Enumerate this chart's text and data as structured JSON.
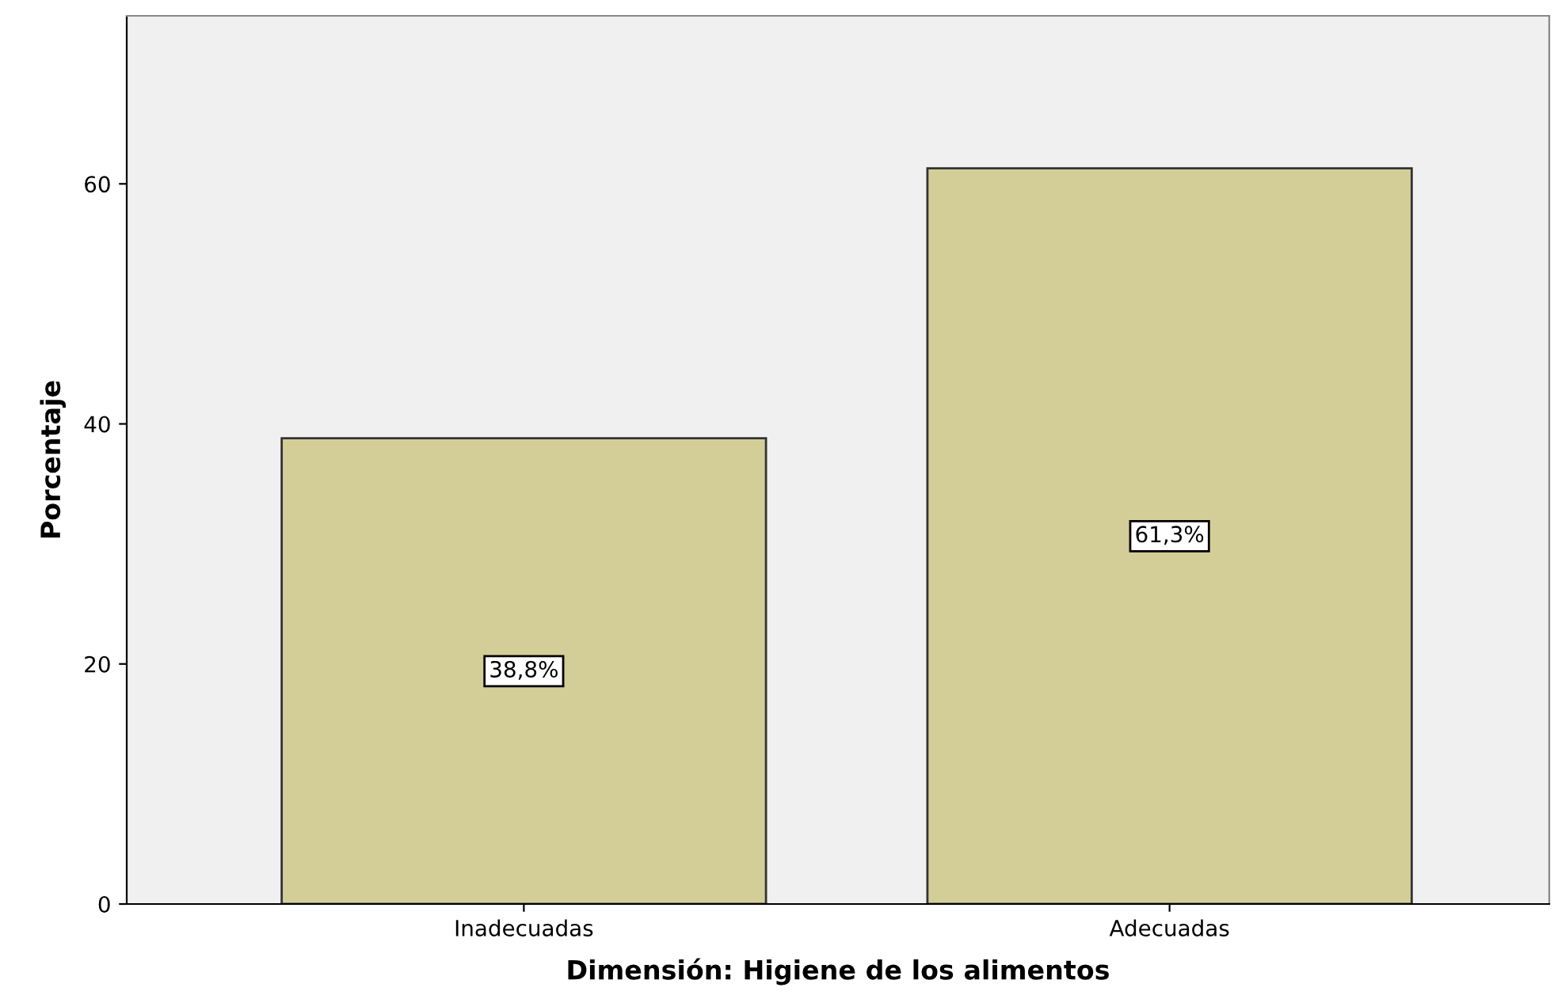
{
  "chart_data": {
    "type": "bar",
    "xlabel": "Dimensión: Higiene de los alimentos",
    "ylabel": "Porcentaje",
    "categories": [
      "Inadecuadas",
      "Adecuadas"
    ],
    "values": [
      38.8,
      61.3
    ],
    "value_labels": [
      "38,8%",
      "61,3%"
    ],
    "color": "#d3ce97",
    "ylim": [
      0,
      74
    ],
    "yticks": [
      0,
      20,
      40,
      60
    ],
    "grid": false,
    "legend": false
  }
}
